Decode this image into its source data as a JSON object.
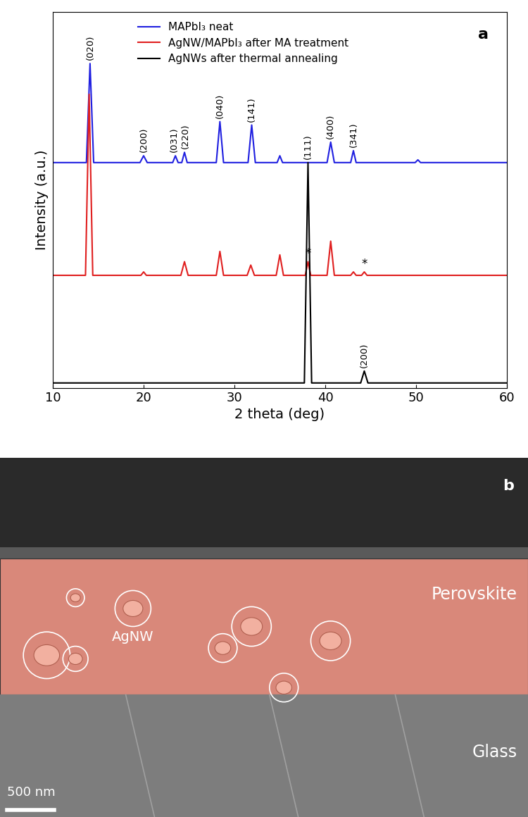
{
  "chart_data": {
    "type": "line",
    "panel_label": "a",
    "x_label": "2 theta (deg)",
    "y_label": "Intensity (a.u.)",
    "xlim": [
      10,
      60
    ],
    "xticks": [
      10,
      20,
      30,
      40,
      50,
      60
    ],
    "ylim": [
      0,
      110
    ],
    "yticks": [],
    "tick_labels": "x",
    "legend": "upper center",
    "series": [
      {
        "name": "MAPbI₃ neat",
        "color": "#1f1fe0",
        "x": [
          10,
          13.7,
          14.1,
          14.5,
          19.6,
          20.0,
          20.4,
          23.2,
          23.5,
          23.8,
          24.2,
          24.5,
          24.8,
          28.0,
          28.4,
          28.8,
          31.5,
          31.9,
          32.3,
          34.7,
          35.0,
          35.3,
          40.2,
          40.6,
          41.0,
          42.8,
          43.1,
          43.4,
          49.9,
          50.2,
          50.5,
          60
        ],
        "values": [
          66,
          66,
          95,
          66,
          66,
          68,
          66,
          66,
          68,
          66,
          66,
          69,
          66,
          66,
          78,
          66,
          66,
          77,
          66,
          66,
          68,
          66,
          66,
          72,
          66,
          66,
          69.5,
          66,
          66,
          66.8,
          66,
          66
        ]
      },
      {
        "name": "AgNW/MAPbI₃ after MA treatment",
        "color": "#e01f1f",
        "x": [
          10,
          13.6,
          14.0,
          14.4,
          19.7,
          20.0,
          20.3,
          24.1,
          24.5,
          24.9,
          28.0,
          28.4,
          28.8,
          31.4,
          31.8,
          32.2,
          34.6,
          35.0,
          35.4,
          37.8,
          38.1,
          38.4,
          40.2,
          40.6,
          41.0,
          42.8,
          43.1,
          43.4,
          44.0,
          44.3,
          44.6,
          60
        ],
        "values": [
          33,
          33,
          86,
          33,
          33,
          34,
          33,
          33,
          37,
          33,
          33,
          40,
          33,
          33,
          36,
          33,
          33,
          39,
          33,
          33,
          37,
          33,
          33,
          43,
          33,
          33,
          34,
          33,
          33,
          34,
          33,
          33
        ]
      },
      {
        "name": "AgNWs after thermal annealing",
        "color": "#000000",
        "x": [
          10,
          37.7,
          38.1,
          38.5,
          43.9,
          44.3,
          44.7,
          60
        ],
        "values": [
          1.5,
          1.5,
          66,
          1.5,
          1.5,
          5,
          1.5,
          1.5
        ]
      }
    ],
    "annotations": [
      {
        "text": "(020)",
        "x": 14.1,
        "y": 96
      },
      {
        "text": "(200)",
        "x": 20.0,
        "y": 69
      },
      {
        "text": "(031)",
        "x": 23.4,
        "y": 69
      },
      {
        "text": "(220)",
        "x": 24.6,
        "y": 70
      },
      {
        "text": "(040)",
        "x": 28.4,
        "y": 79
      },
      {
        "text": "(141)",
        "x": 31.9,
        "y": 78
      },
      {
        "text": "(400)",
        "x": 40.6,
        "y": 73
      },
      {
        "text": "(341)",
        "x": 43.1,
        "y": 70.5
      },
      {
        "text": "*",
        "x": 38.1,
        "y": 37.5
      },
      {
        "text": "*",
        "x": 44.3,
        "y": 34.5
      },
      {
        "text": "(111)",
        "x": 38.1,
        "y": 67
      },
      {
        "text": "(200)",
        "x": 44.3,
        "y": 6
      }
    ]
  },
  "image": {
    "panel_label": "b",
    "layers": [
      "Perovskite",
      "Glass"
    ],
    "annotation": "AgNW",
    "scale_bar": "500 nm"
  }
}
